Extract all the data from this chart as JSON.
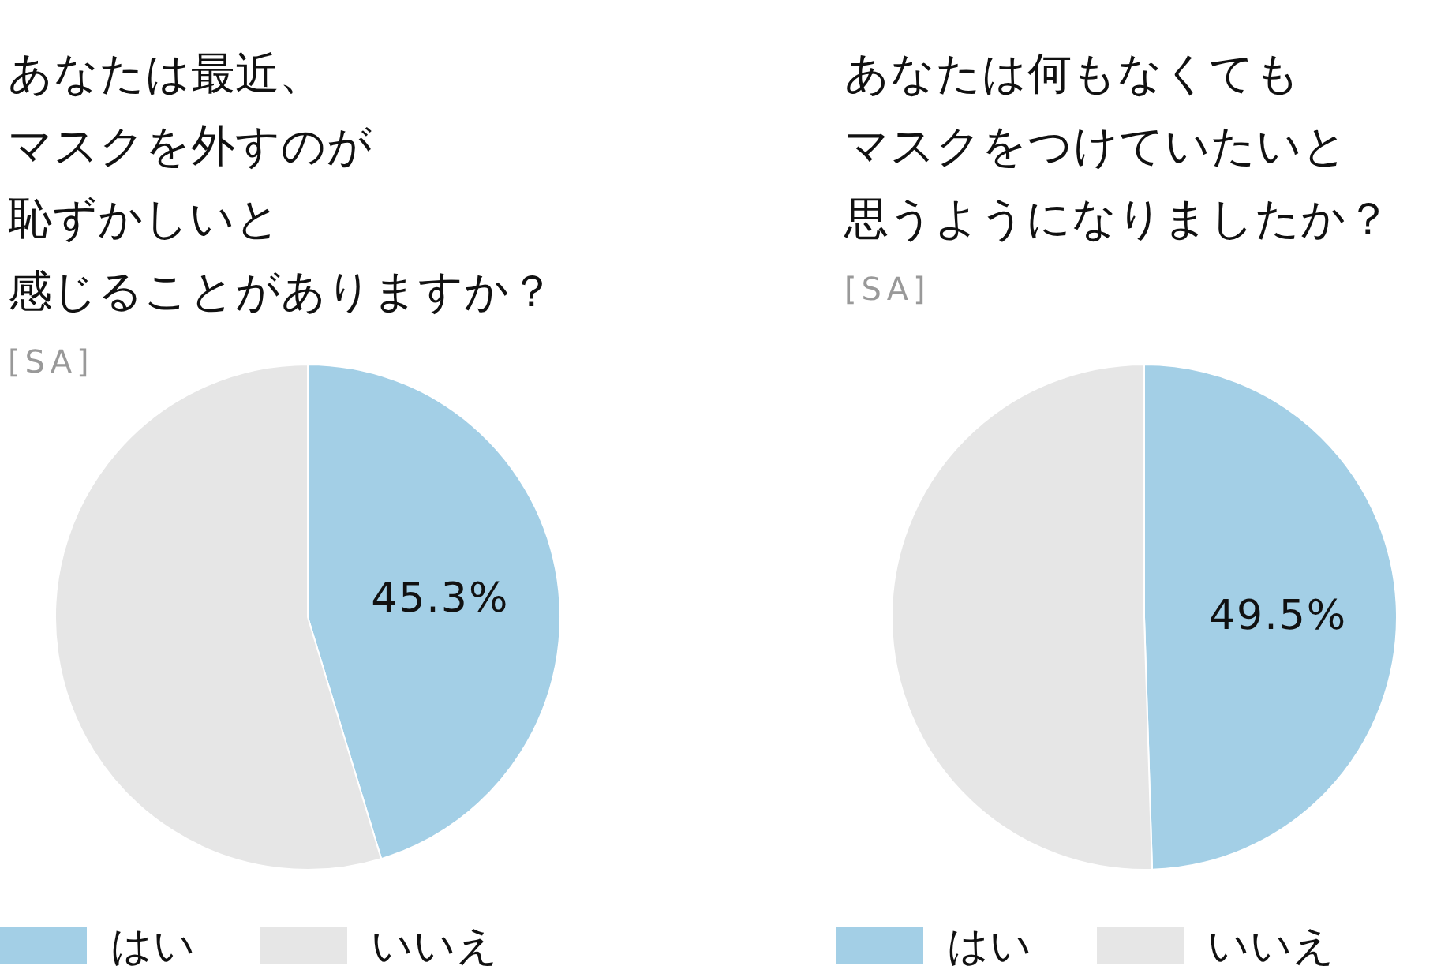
{
  "chart_data": [
    {
      "type": "pie",
      "title": "あなたは最近、マスクを外すのが恥ずかしいと感じることがありますか？",
      "subtitle": "[SA]",
      "categories": [
        "はい",
        "いいえ"
      ],
      "values": [
        45.3,
        54.7
      ],
      "colors": [
        "#a3cfe6",
        "#e6e6e6"
      ],
      "value_labels": [
        "45.3%",
        null
      ],
      "legend": "bottom"
    },
    {
      "type": "pie",
      "title": "あなたは何もなくてもマスクをつけていたいと思うようになりましたか？",
      "subtitle": "[SA]",
      "categories": [
        "はい",
        "いいえ"
      ],
      "values": [
        49.5,
        50.5
      ],
      "colors": [
        "#a3cfe6",
        "#e6e6e6"
      ],
      "value_labels": [
        "49.5%",
        null
      ],
      "legend": "bottom"
    }
  ]
}
